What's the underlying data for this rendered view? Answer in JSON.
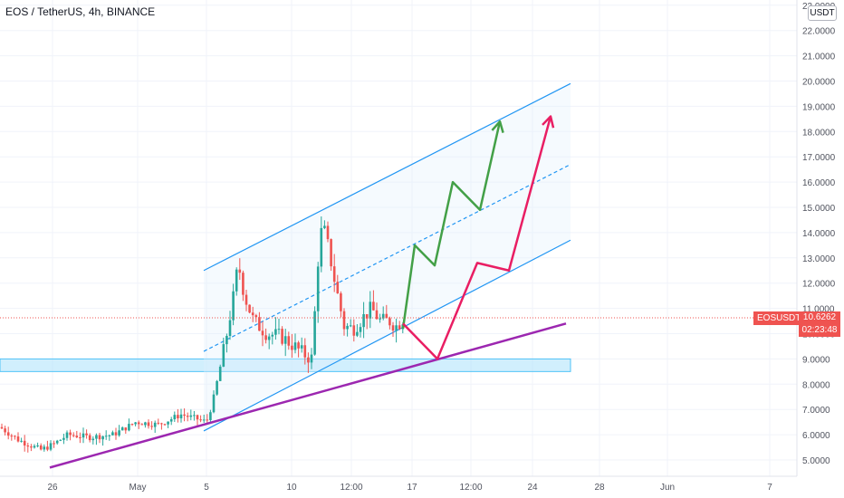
{
  "header": {
    "title": "EOS / TetherUS, 4h, BINANCE"
  },
  "price_axis": {
    "currency": "USDT",
    "symbol": "EOSUSDT",
    "last_price": "10.6262",
    "countdown": "02:23:48"
  },
  "colors": {
    "up": "#26a69a",
    "down": "#ef5350",
    "channel": "#2196f3",
    "zone": "#b3e5fc",
    "support": "#9c27b0",
    "green_path": "#43a047",
    "red_path": "#e91e63"
  },
  "chart_data": {
    "type": "candlestick",
    "title": "EOS / TetherUS, 4h, BINANCE",
    "ylim": [
      4.6,
      23.0
    ],
    "y_ticks": [
      "5.0000",
      "6.0000",
      "7.0000",
      "8.0000",
      "9.0000",
      "10.0000",
      "11.0000",
      "12.0000",
      "13.0000",
      "14.0000",
      "15.0000",
      "16.0000",
      "17.0000",
      "18.0000",
      "19.0000",
      "20.0000",
      "21.0000",
      "22.0000",
      "23.0000"
    ],
    "x_ticks": [
      "26",
      "May",
      "5",
      "10",
      "12:00",
      "17",
      "12:00",
      "24",
      "28",
      "Jun",
      "7"
    ],
    "last_price": 10.6262,
    "price_path": [
      [
        0,
        6.3
      ],
      [
        20,
        5.8
      ],
      [
        45,
        5.4
      ],
      [
        58,
        5.6
      ],
      [
        75,
        6.0
      ],
      [
        100,
        5.9
      ],
      [
        125,
        6.0
      ],
      [
        150,
        6.5
      ],
      [
        175,
        6.4
      ],
      [
        200,
        6.8
      ],
      [
        220,
        6.6
      ],
      [
        228,
        6.5
      ],
      [
        235,
        7.3
      ],
      [
        248,
        9.5
      ],
      [
        258,
        11.5
      ],
      [
        263,
        12.8
      ],
      [
        270,
        11.5
      ],
      [
        280,
        10.5
      ],
      [
        295,
        10.0
      ],
      [
        310,
        9.9
      ],
      [
        325,
        9.5
      ],
      [
        335,
        9.2
      ],
      [
        345,
        9.0
      ],
      [
        350,
        12.5
      ],
      [
        356,
        14.4
      ],
      [
        362,
        13.5
      ],
      [
        370,
        12.0
      ],
      [
        380,
        10.3
      ],
      [
        390,
        10.2
      ],
      [
        400,
        10.6
      ],
      [
        410,
        11.0
      ],
      [
        420,
        10.5
      ],
      [
        430,
        10.5
      ],
      [
        438,
        10.3
      ],
      [
        445,
        10.6
      ]
    ],
    "drawings": {
      "channel_upper": [
        [
          225,
          12.5
        ],
        [
          630,
          19.9
        ]
      ],
      "channel_mid": [
        [
          225,
          9.3
        ],
        [
          630,
          16.7
        ]
      ],
      "channel_lower": [
        [
          225,
          6.15
        ],
        [
          630,
          13.7
        ]
      ],
      "support_line": [
        [
          55,
          4.7
        ],
        [
          625,
          10.4
        ]
      ],
      "demand_zone": [
        8.5,
        9.0
      ],
      "green_projection": [
        [
          445,
          10.2
        ],
        [
          458,
          13.5
        ],
        [
          480,
          12.7
        ],
        [
          500,
          16.0
        ],
        [
          530,
          14.9
        ],
        [
          552,
          18.4
        ]
      ],
      "red_projection": [
        [
          445,
          10.4
        ],
        [
          483,
          9.0
        ],
        [
          527,
          12.8
        ],
        [
          562,
          12.5
        ],
        [
          608,
          18.6
        ]
      ]
    }
  }
}
